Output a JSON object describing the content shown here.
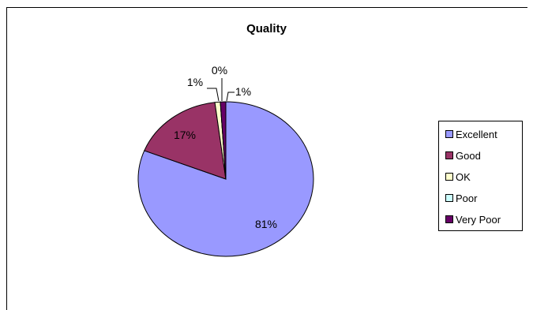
{
  "chart_data": {
    "type": "pie",
    "title": "Quality",
    "categories": [
      "Excellent",
      "Good",
      "OK",
      "Poor",
      "Very Poor"
    ],
    "values": [
      81,
      17,
      1,
      0,
      1
    ],
    "data_labels": [
      "81%",
      "17%",
      "1%",
      "0%",
      "1%"
    ],
    "colors": [
      "#9999ff",
      "#993366",
      "#ffffcc",
      "#ccffff",
      "#660066"
    ],
    "legend": {
      "placement": "right",
      "entries": [
        "Excellent",
        "Good",
        "OK",
        "Poor",
        "Very Poor"
      ]
    }
  }
}
